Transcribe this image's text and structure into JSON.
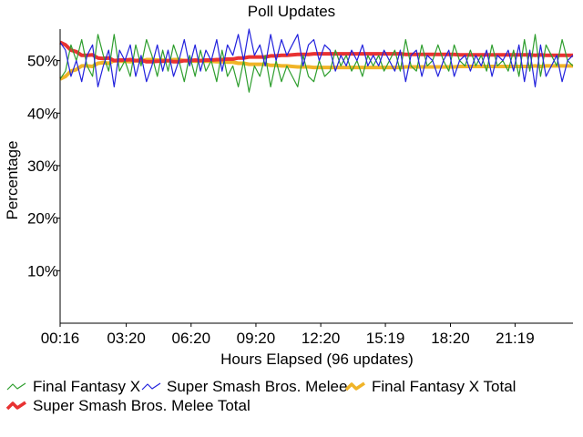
{
  "chart_data": {
    "type": "line",
    "title": "Poll Updates",
    "xlabel": "Hours Elapsed (96 updates)",
    "ylabel": "Percentage",
    "ylim": [
      0,
      56
    ],
    "yticks": [
      10,
      20,
      30,
      40,
      50
    ],
    "ytick_labels": [
      "10%",
      "20%",
      "30%",
      "40%",
      "50%"
    ],
    "x_range_hours": [
      0.27,
      24.0
    ],
    "xticks": [
      {
        "hours": 0.27,
        "label": "00:16"
      },
      {
        "hours": 3.33,
        "label": "03:20"
      },
      {
        "hours": 6.33,
        "label": "06:20"
      },
      {
        "hours": 9.33,
        "label": "09:20"
      },
      {
        "hours": 12.33,
        "label": "12:20"
      },
      {
        "hours": 15.32,
        "label": "15:19"
      },
      {
        "hours": 18.33,
        "label": "18:20"
      },
      {
        "hours": 21.32,
        "label": "21:19"
      }
    ],
    "grid": false,
    "legend_position": "bottom",
    "series": [
      {
        "name": "Final Fantasy X",
        "color": "#2e9e2e",
        "style": "thin",
        "values": [
          46.5,
          48,
          53,
          50,
          54,
          49,
          47,
          55,
          51,
          48,
          55,
          48,
          50,
          47,
          53,
          49,
          54,
          51,
          47,
          52,
          48,
          53,
          50,
          46,
          51,
          47,
          52,
          48,
          50,
          46,
          52,
          47,
          49,
          45,
          50,
          44,
          49,
          47,
          51,
          45,
          50,
          46,
          49,
          47,
          45,
          51,
          47,
          46,
          50,
          47,
          48,
          52,
          49,
          51,
          48,
          50,
          47,
          51,
          49,
          51,
          48,
          50,
          52,
          48,
          54,
          49,
          48,
          53,
          49,
          50,
          53,
          50,
          48,
          53,
          50,
          49,
          52,
          49,
          51,
          48,
          53,
          49,
          50,
          48,
          52,
          47,
          54,
          48,
          55,
          47,
          53,
          51,
          49,
          54,
          50,
          49
        ]
      },
      {
        "name": "Super Smash Bros. Melee",
        "color": "#2222dd",
        "style": "thin",
        "values": [
          53.5,
          52,
          47,
          50,
          46,
          51,
          53,
          45,
          49,
          52,
          45,
          52,
          50,
          53,
          47,
          51,
          46,
          49,
          53,
          48,
          52,
          47,
          50,
          54,
          49,
          53,
          48,
          52,
          50,
          54,
          48,
          53,
          51,
          55,
          50,
          56,
          51,
          53,
          49,
          55,
          50,
          54,
          51,
          53,
          55,
          49,
          53,
          54,
          50,
          53,
          52,
          48,
          51,
          49,
          52,
          50,
          53,
          49,
          51,
          49,
          52,
          50,
          48,
          52,
          46,
          51,
          52,
          47,
          51,
          50,
          47,
          50,
          52,
          47,
          50,
          51,
          48,
          51,
          49,
          52,
          47,
          51,
          50,
          52,
          48,
          53,
          46,
          52,
          45,
          53,
          47,
          49,
          51,
          46,
          50,
          51
        ]
      },
      {
        "name": "Final Fantasy X Total",
        "color": "#f0b428",
        "style": "thick",
        "values": [
          46.5,
          47.0,
          48.0,
          48.3,
          49.0,
          49.0,
          48.9,
          49.5,
          49.6,
          49.5,
          50.0,
          49.9,
          49.9,
          49.8,
          50.0,
          49.9,
          50.2,
          50.2,
          50.1,
          50.1,
          50.0,
          50.2,
          50.2,
          50.0,
          50.0,
          49.9,
          50.0,
          49.9,
          49.9,
          49.8,
          49.8,
          49.7,
          49.7,
          49.5,
          49.5,
          49.3,
          49.3,
          49.3,
          49.3,
          49.1,
          49.1,
          49.0,
          49.0,
          48.9,
          48.8,
          48.8,
          48.8,
          48.7,
          48.7,
          48.7,
          48.7,
          48.7,
          48.7,
          48.7,
          48.7,
          48.7,
          48.7,
          48.7,
          48.7,
          48.7,
          48.7,
          48.7,
          48.7,
          48.7,
          48.8,
          48.8,
          48.8,
          48.8,
          48.8,
          48.8,
          48.8,
          48.8,
          48.8,
          48.8,
          48.9,
          48.9,
          48.9,
          48.9,
          48.9,
          48.9,
          48.9,
          48.9,
          48.9,
          48.9,
          48.9,
          48.9,
          48.9,
          48.9,
          49.0,
          48.9,
          49.0,
          49.0,
          49.0,
          49.0,
          49.0,
          49.0
        ]
      },
      {
        "name": "Super Smash Bros. Melee Total",
        "color": "#e83232",
        "style": "thick",
        "values": [
          53.5,
          53.0,
          52.0,
          51.7,
          51.0,
          51.0,
          51.1,
          50.5,
          50.4,
          50.5,
          50.0,
          50.1,
          50.1,
          50.2,
          50.0,
          50.1,
          49.8,
          49.8,
          49.9,
          49.9,
          50.0,
          49.8,
          49.8,
          50.0,
          50.0,
          50.1,
          50.0,
          50.1,
          50.1,
          50.2,
          50.2,
          50.3,
          50.3,
          50.5,
          50.5,
          50.7,
          50.7,
          50.7,
          50.7,
          50.9,
          50.9,
          51.0,
          51.0,
          51.1,
          51.2,
          51.2,
          51.2,
          51.3,
          51.3,
          51.3,
          51.3,
          51.3,
          51.3,
          51.3,
          51.3,
          51.3,
          51.3,
          51.3,
          51.3,
          51.3,
          51.3,
          51.3,
          51.3,
          51.3,
          51.2,
          51.2,
          51.2,
          51.2,
          51.2,
          51.2,
          51.2,
          51.2,
          51.2,
          51.2,
          51.1,
          51.1,
          51.1,
          51.1,
          51.1,
          51.1,
          51.1,
          51.1,
          51.1,
          51.1,
          51.1,
          51.1,
          51.1,
          51.1,
          51.0,
          51.1,
          51.0,
          51.0,
          51.0,
          51.0,
          51.0,
          51.0
        ]
      }
    ]
  }
}
